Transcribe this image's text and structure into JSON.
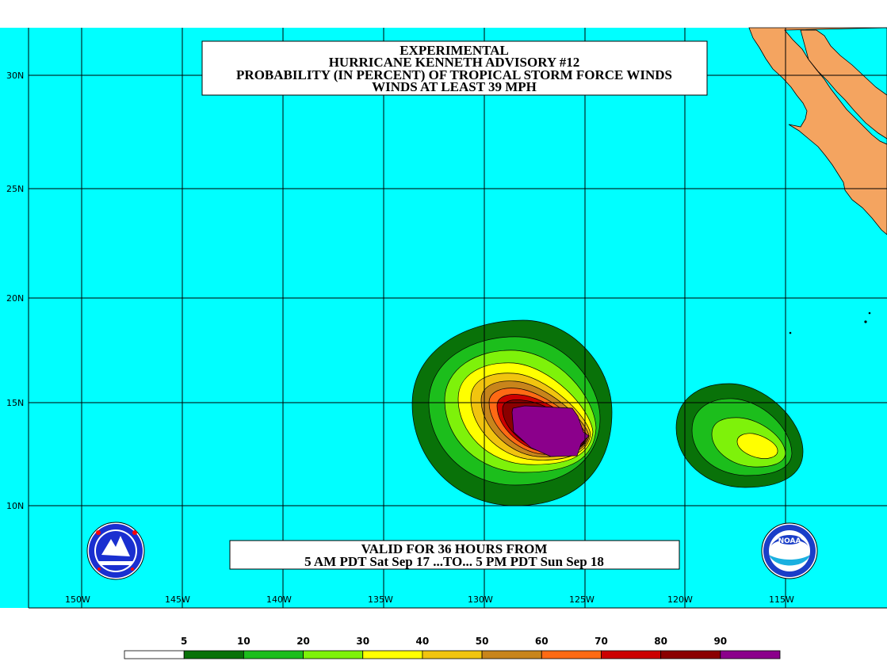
{
  "title": {
    "line1": "EXPERIMENTAL",
    "line2": "HURRICANE KENNETH ADVISORY #12",
    "line3": "PROBABILITY (IN PERCENT) OF TROPICAL STORM FORCE WINDS",
    "line4": "WINDS AT LEAST 39 MPH"
  },
  "validity": {
    "line1": "VALID FOR 36 HOURS FROM",
    "line2": "5 AM PDT Sat Sep 17 ...TO... 5 PM PDT Sun Sep 18"
  },
  "lat_labels": [
    "30N",
    "25N",
    "20N",
    "15N",
    "10N"
  ],
  "lon_labels": [
    "150W",
    "145W",
    "140W",
    "135W",
    "130W",
    "125W",
    "120W",
    "115W"
  ],
  "legend": {
    "labels": [
      "5",
      "10",
      "20",
      "30",
      "40",
      "50",
      "60",
      "70",
      "80",
      "90"
    ],
    "colors": [
      "#ffffff",
      "#097209",
      "#1cbe1c",
      "#7ef20a",
      "#ffff00",
      "#f1c40f",
      "#c8851b",
      "#fe6a14",
      "#cc0000",
      "#8b0000",
      "#8b008b"
    ]
  },
  "colors": {
    "ocean": "#00ffff",
    "land": "#f4a460"
  },
  "logos": {
    "left": "nws-logo-icon",
    "right": "noaa-logo-icon"
  }
}
